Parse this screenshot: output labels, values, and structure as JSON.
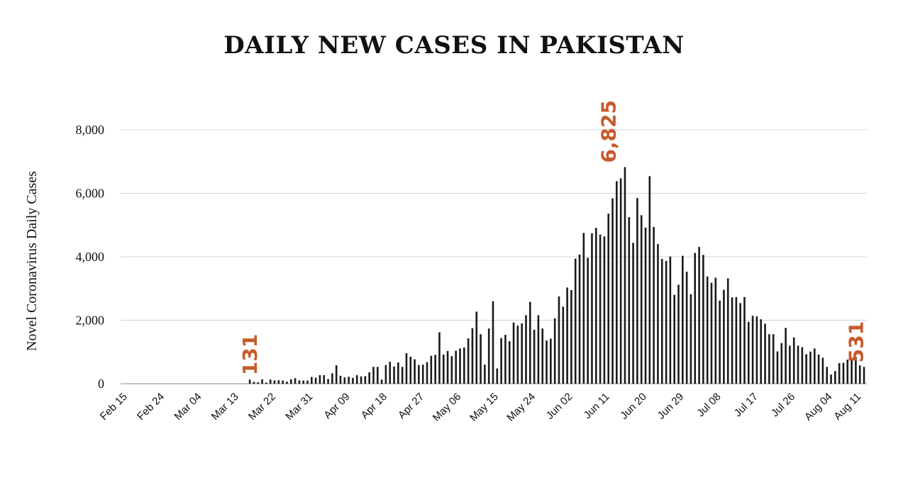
{
  "chart_data": {
    "type": "bar",
    "title": "DAILY NEW CASES IN PAKISTAN",
    "ylabel": "Novel Coronavirus Daily Cases",
    "xlabel": "",
    "ylim": [
      0,
      8000
    ],
    "grid": true,
    "y_ticks": [
      "0",
      "2,000",
      "4,000",
      "6,000",
      "8,000"
    ],
    "y_tick_values": [
      0,
      2000,
      4000,
      6000,
      8000
    ],
    "x_ticks": [
      "Feb 15",
      "Feb 24",
      "Mar 04",
      "Mar 13",
      "Mar 22",
      "Mar 31",
      "Apr 09",
      "Apr 18",
      "Apr 27",
      "May 06",
      "May 15",
      "May 24",
      "Jun 02",
      "Jun 11",
      "Jun 20",
      "Jun 29",
      "Jul 08",
      "Jul 17",
      "Jul 26",
      "Aug 04",
      "Aug 11"
    ],
    "x_tick_day_index": [
      0,
      9,
      18,
      27,
      36,
      45,
      54,
      63,
      72,
      81,
      90,
      99,
      108,
      117,
      126,
      135,
      144,
      153,
      162,
      171,
      178
    ],
    "x_start": "Feb 15",
    "x_end": "Aug 11",
    "bar_color": "#1a1a1a",
    "annotation_color": "#c85a2a",
    "annotations": [
      {
        "label": "131",
        "day_index": 31,
        "value": 131
      },
      {
        "label": "6,825",
        "day_index": 118,
        "value": 6825
      },
      {
        "label": "531",
        "day_index": 178,
        "value": 531
      }
    ],
    "values": [
      0,
      0,
      0,
      0,
      0,
      0,
      0,
      0,
      0,
      0,
      0,
      0,
      0,
      0,
      0,
      0,
      0,
      0,
      0,
      0,
      0,
      0,
      0,
      0,
      0,
      0,
      0,
      0,
      0,
      0,
      0,
      131,
      60,
      45,
      140,
      40,
      130,
      105,
      110,
      100,
      65,
      140,
      175,
      105,
      100,
      100,
      215,
      190,
      270,
      270,
      150,
      330,
      580,
      250,
      200,
      220,
      185,
      270,
      230,
      240,
      360,
      530,
      530,
      130,
      590,
      690,
      540,
      670,
      530,
      960,
      850,
      770,
      590,
      600,
      680,
      880,
      910,
      1620,
      920,
      1030,
      870,
      1040,
      1110,
      1140,
      1430,
      1750,
      2270,
      1560,
      600,
      1740,
      2600,
      480,
      1440,
      1540,
      1340,
      1930,
      1830,
      1900,
      2160,
      2580,
      1700,
      2160,
      1740,
      1360,
      1420,
      2060,
      2750,
      2430,
      3030,
      2950,
      3940,
      4070,
      4750,
      3970,
      4740,
      4910,
      4700,
      4640,
      5360,
      5840,
      6380,
      6470,
      6825,
      5250,
      4440,
      5850,
      5310,
      4920,
      6540,
      4940,
      4400,
      3930,
      3870,
      4010,
      2800,
      3120,
      4030,
      3530,
      2820,
      4120,
      4310,
      4060,
      3380,
      3180,
      3340,
      2620,
      2960,
      3320,
      2720,
      2730,
      2540,
      2730,
      1950,
      2140,
      2120,
      2030,
      1890,
      1560,
      1560,
      1020,
      1280,
      1760,
      1200,
      1460,
      1200,
      1150,
      930,
      1010,
      1110,
      920,
      820,
      530,
      290,
      400,
      650,
      660,
      760,
      800,
      840,
      580,
      531
    ]
  }
}
